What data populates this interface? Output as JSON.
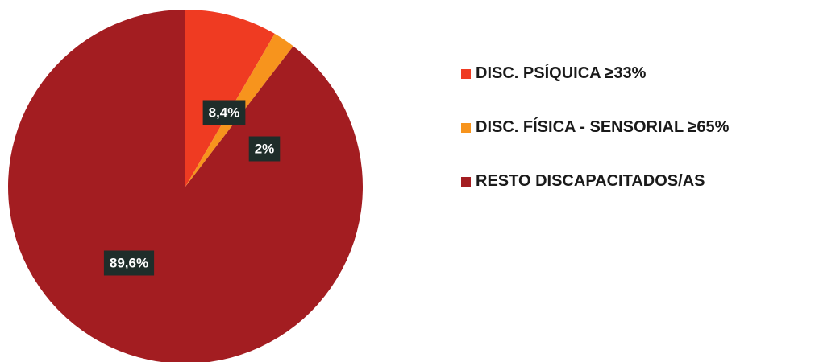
{
  "chart_data": {
    "type": "pie",
    "slices": [
      {
        "label": "DISC. PSÍQUICA ≥33%",
        "value": 8.4,
        "display": "8,4%",
        "color": "#ef3b22"
      },
      {
        "label": "DISC. FÍSICA - SENSORIAL ≥65%",
        "value": 2.0,
        "display": "2%",
        "color": "#f7941d"
      },
      {
        "label": "RESTO DISCAPACITADOS/AS",
        "value": 89.6,
        "display": "89,6%",
        "color": "#a31d21"
      }
    ],
    "legend_position": "right"
  }
}
